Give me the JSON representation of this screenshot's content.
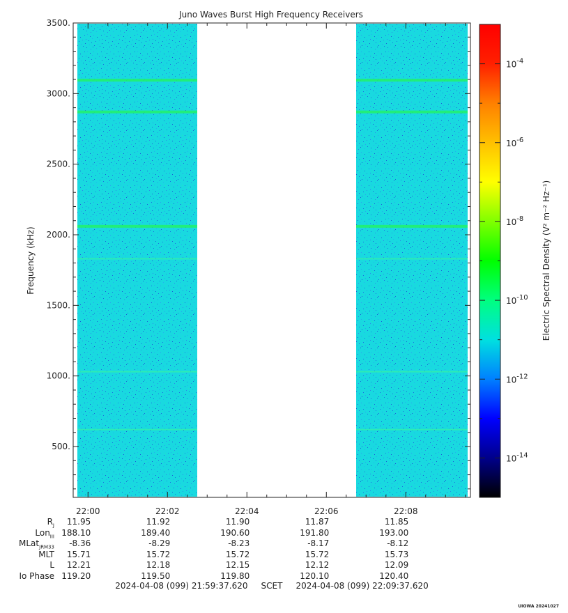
{
  "chart_data": {
    "type": "heatmap",
    "title": "Juno Waves Burst High Frequency Receivers",
    "xlabel": "",
    "ylabel": "Frequency (kHz)",
    "ylim": [
      140,
      3500
    ],
    "yticks": [
      "500.",
      "1000.",
      "1500.",
      "2000.",
      "2500.",
      "3000.",
      "3500."
    ],
    "ytick_values": [
      500,
      1000,
      1500,
      2000,
      2500,
      3000,
      3500
    ],
    "x_range_minutes": [
      -0.373,
      9.627
    ],
    "xticks": [
      "22:00",
      "22:02",
      "22:04",
      "22:06",
      "22:08"
    ],
    "xtick_minutes": [
      0,
      2,
      4,
      6,
      8
    ],
    "data_gap_minutes": [
      2.75,
      6.75
    ],
    "emission_lines_khz": [
      3095,
      2870,
      2060,
      1830,
      1030,
      620
    ],
    "colorbar": {
      "label": "Electric Spectral Density (V² m⁻² Hz⁻¹)",
      "scale": "log",
      "range": [
        1e-15,
        0.001
      ],
      "ticks": [
        "-4",
        "-6",
        "-8",
        "-10",
        "-12",
        "-14"
      ],
      "tick_exponents": [
        -4,
        -6,
        -8,
        -10,
        -12,
        -14
      ],
      "tick_base": "10",
      "colors": [
        "#000000",
        "#00008b",
        "#0000ff",
        "#0080ff",
        "#00e0e0",
        "#00ff80",
        "#00ff00",
        "#80ff00",
        "#ffff00",
        "#ffc000",
        "#ff8000",
        "#ff2000",
        "#ff0000"
      ]
    },
    "background_color": "#19d9e0"
  },
  "ephemeris": {
    "rows": [
      {
        "label": "R",
        "sub": "J",
        "values": [
          "11.95",
          "11.92",
          "11.90",
          "11.87",
          "11.85"
        ]
      },
      {
        "label": "Lon",
        "sub": "III",
        "values": [
          "188.10",
          "189.40",
          "190.60",
          "191.80",
          "193.00"
        ]
      },
      {
        "label": "MLat",
        "sub": "JRM33",
        "values": [
          "-8.36",
          "-8.29",
          "-8.23",
          "-8.17",
          "-8.12"
        ]
      },
      {
        "label": "MLT",
        "sub": "",
        "values": [
          "15.71",
          "15.72",
          "15.72",
          "15.72",
          "15.73"
        ]
      },
      {
        "label": "L",
        "sub": "",
        "values": [
          "12.21",
          "12.18",
          "12.15",
          "12.12",
          "12.09"
        ]
      },
      {
        "label": "Io Phase",
        "sub": "",
        "values": [
          "119.20",
          "119.50",
          "119.80",
          "120.10",
          "120.40"
        ]
      }
    ]
  },
  "footer": {
    "time_range": "2024-04-08 (099) 21:59:37.620     SCET     2024-04-08 (099) 22:09:37.620",
    "stamp": "UIOWA 20241027"
  }
}
